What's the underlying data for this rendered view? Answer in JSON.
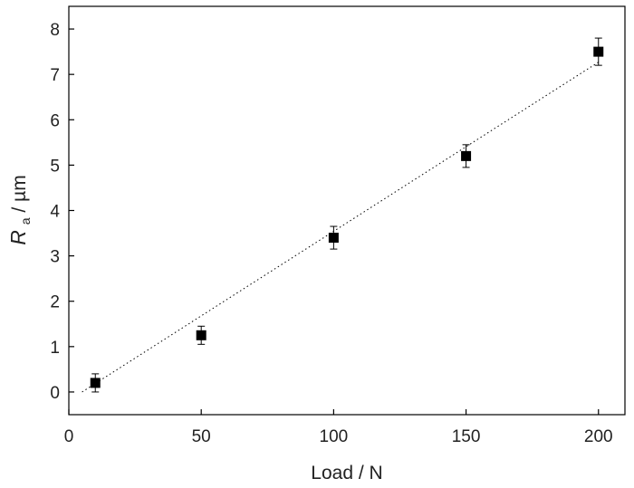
{
  "chart_data": {
    "type": "scatter",
    "title": "",
    "xlabel": "Load / N",
    "ylabel": {
      "symbol": "R",
      "subscript": "a",
      "unit": " / µm"
    },
    "xlim": [
      0,
      210
    ],
    "ylim": [
      -0.5,
      8.5
    ],
    "x_ticks": [
      0,
      50,
      100,
      150,
      200
    ],
    "y_ticks": [
      0,
      1,
      2,
      3,
      4,
      5,
      6,
      7,
      8
    ],
    "grid": false,
    "legend": "none",
    "series": [
      {
        "x": [
          10,
          50,
          100,
          150,
          200
        ],
        "y": [
          0.2,
          1.25,
          3.4,
          5.2,
          7.5
        ],
        "error": [
          0.2,
          0.2,
          0.25,
          0.25,
          0.3
        ],
        "marker": "square",
        "color": "#000000"
      }
    ],
    "fit_line": {
      "style": "dotted",
      "color": "#000000",
      "x": [
        5,
        200
      ],
      "y": [
        0.0,
        7.27
      ]
    }
  }
}
